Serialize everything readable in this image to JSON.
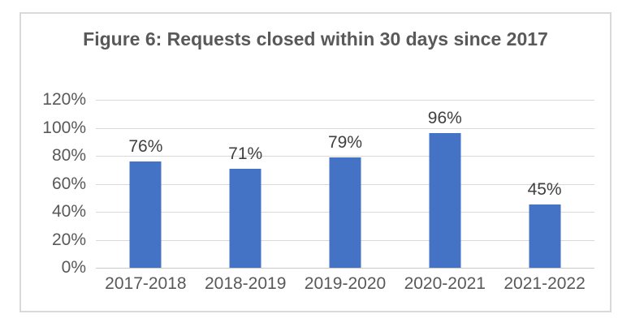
{
  "chart_data": {
    "type": "bar",
    "title": "Figure 6: Requests closed within 30 days since 2017",
    "categories": [
      "2017-2018",
      "2018-2019",
      "2019-2020",
      "2020-2021",
      "2021-2022"
    ],
    "values": [
      76,
      71,
      79,
      96,
      45
    ],
    "data_labels": [
      "76%",
      "71%",
      "79%",
      "96%",
      "45%"
    ],
    "y_ticks_top_to_bottom": [
      "120%",
      "100%",
      "80%",
      "60%",
      "40%",
      "20%",
      "0%"
    ],
    "ylim": [
      0,
      120
    ],
    "y_tick_step": 20,
    "xlabel": "",
    "ylabel": "",
    "grid": "horizontal",
    "legend": "none",
    "colors": {
      "bar_fill": "#4472C4",
      "gridline": "#D9D9D9",
      "axis_baseline": "#C9C9C9",
      "frame_border": "#D9D9D9",
      "title_text": "#595959",
      "axis_text": "#595959",
      "data_label_text": "#404040",
      "background": "#FFFFFF"
    }
  }
}
